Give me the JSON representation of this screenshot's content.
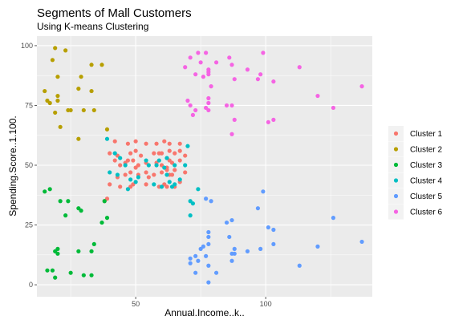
{
  "chart_data": {
    "type": "scatter",
    "title": "Segments of Mall Customers",
    "subtitle": "Using K-means Clustering",
    "xlabel": "Annual.Income..k..",
    "ylabel": "Spending.Score..1.100.",
    "xlim": [
      12,
      141
    ],
    "ylim": [
      -5,
      104
    ],
    "xticks": [
      50,
      100
    ],
    "yticks": [
      0,
      25,
      50,
      75,
      100
    ],
    "grid": true,
    "legend_position": "right",
    "series": [
      {
        "name": "Cluster 1",
        "color": "#F8766D",
        "points": [
          [
            38,
            35
          ],
          [
            39,
            36
          ],
          [
            40,
            42
          ],
          [
            40,
            55
          ],
          [
            42,
            52
          ],
          [
            42,
            60
          ],
          [
            43,
            54
          ],
          [
            43,
            45
          ],
          [
            44,
            50
          ],
          [
            44,
            41
          ],
          [
            46,
            51
          ],
          [
            46,
            46
          ],
          [
            47,
            52
          ],
          [
            47,
            59
          ],
          [
            48,
            41
          ],
          [
            48,
            47
          ],
          [
            48,
            55
          ],
          [
            49,
            52
          ],
          [
            49,
            42
          ],
          [
            50,
            60
          ],
          [
            50,
            49
          ],
          [
            50,
            56
          ],
          [
            51,
            50
          ],
          [
            51,
            46
          ],
          [
            52,
            54
          ],
          [
            54,
            59
          ],
          [
            54,
            47
          ],
          [
            54,
            51
          ],
          [
            54,
            42
          ],
          [
            55,
            45
          ],
          [
            57,
            46
          ],
          [
            57,
            55
          ],
          [
            58,
            51
          ],
          [
            58,
            59
          ],
          [
            59,
            55
          ],
          [
            59,
            41
          ],
          [
            60,
            50
          ],
          [
            60,
            47
          ],
          [
            60,
            55
          ],
          [
            61,
            42
          ],
          [
            61,
            60
          ],
          [
            62,
            49
          ],
          [
            62,
            53
          ],
          [
            62,
            41
          ],
          [
            62,
            48
          ],
          [
            63,
            46
          ],
          [
            63,
            52
          ],
          [
            63,
            56
          ],
          [
            63,
            59
          ],
          [
            64,
            51
          ],
          [
            64,
            46
          ],
          [
            65,
            55
          ],
          [
            65,
            41
          ],
          [
            65,
            48
          ],
          [
            67,
            52
          ],
          [
            67,
            56
          ],
          [
            67,
            43
          ],
          [
            67,
            59
          ],
          [
            69,
            47
          ],
          [
            69,
            54
          ]
        ]
      },
      {
        "name": "Cluster 2",
        "color": "#B79F00",
        "points": [
          [
            15,
            81
          ],
          [
            16,
            77
          ],
          [
            17,
            76
          ],
          [
            18,
            94
          ],
          [
            19,
            99
          ],
          [
            19,
            72
          ],
          [
            20,
            77
          ],
          [
            20,
            79
          ],
          [
            20,
            87
          ],
          [
            21,
            66
          ],
          [
            23,
            98
          ],
          [
            24,
            73
          ],
          [
            25,
            73
          ],
          [
            28,
            82
          ],
          [
            28,
            61
          ],
          [
            29,
            87
          ],
          [
            30,
            73
          ],
          [
            33,
            92
          ],
          [
            33,
            81
          ],
          [
            34,
            73
          ],
          [
            37,
            92
          ],
          [
            39,
            65
          ]
        ]
      },
      {
        "name": "Cluster 3",
        "color": "#00BA38",
        "points": [
          [
            15,
            39
          ],
          [
            16,
            6
          ],
          [
            17,
            40
          ],
          [
            18,
            6
          ],
          [
            19,
            3
          ],
          [
            19,
            14
          ],
          [
            20,
            13
          ],
          [
            20,
            15
          ],
          [
            21,
            35
          ],
          [
            23,
            29
          ],
          [
            24,
            35
          ],
          [
            25,
            5
          ],
          [
            28,
            14
          ],
          [
            28,
            32
          ],
          [
            29,
            31
          ],
          [
            30,
            4
          ],
          [
            33,
            4
          ],
          [
            33,
            14
          ],
          [
            34,
            17
          ],
          [
            37,
            26
          ],
          [
            38,
            35
          ],
          [
            39,
            28
          ]
        ]
      },
      {
        "name": "Cluster 4",
        "color": "#00BFC4",
        "points": [
          [
            39,
            61
          ],
          [
            40,
            47
          ],
          [
            42,
            55
          ],
          [
            43,
            46
          ],
          [
            44,
            53
          ],
          [
            46,
            50
          ],
          [
            47,
            40
          ],
          [
            48,
            44
          ],
          [
            50,
            43
          ],
          [
            51,
            45
          ],
          [
            54,
            52
          ],
          [
            55,
            50
          ],
          [
            57,
            42
          ],
          [
            58,
            50
          ],
          [
            59,
            52
          ],
          [
            60,
            41
          ],
          [
            61,
            49
          ],
          [
            62,
            53
          ],
          [
            62,
            46
          ],
          [
            63,
            43
          ],
          [
            64,
            41
          ],
          [
            65,
            42
          ],
          [
            65,
            50
          ],
          [
            67,
            44
          ],
          [
            69,
            50
          ],
          [
            70,
            58
          ],
          [
            71,
            35
          ],
          [
            71,
            29
          ],
          [
            72,
            34
          ],
          [
            74,
            40
          ]
        ]
      },
      {
        "name": "Cluster 5",
        "color": "#619CFF",
        "points": [
          [
            71,
            11
          ],
          [
            71,
            9
          ],
          [
            73,
            5
          ],
          [
            73,
            12
          ],
          [
            74,
            10
          ],
          [
            75,
            15
          ],
          [
            76,
            16
          ],
          [
            77,
            12
          ],
          [
            77,
            36
          ],
          [
            78,
            1
          ],
          [
            78,
            20
          ],
          [
            78,
            22
          ],
          [
            78,
            17
          ],
          [
            78,
            8
          ],
          [
            79,
            35
          ],
          [
            81,
            5
          ],
          [
            85,
            26
          ],
          [
            86,
            20
          ],
          [
            87,
            27
          ],
          [
            87,
            13
          ],
          [
            87,
            10
          ],
          [
            88,
            15
          ],
          [
            88,
            13
          ],
          [
            93,
            14
          ],
          [
            97,
            32
          ],
          [
            98,
            15
          ],
          [
            99,
            39
          ],
          [
            101,
            24
          ],
          [
            103,
            17
          ],
          [
            103,
            23
          ],
          [
            113,
            8
          ],
          [
            120,
            16
          ],
          [
            126,
            28
          ],
          [
            137,
            18
          ]
        ]
      },
      {
        "name": "Cluster 6",
        "color": "#F564E3",
        "points": [
          [
            69,
            91
          ],
          [
            70,
            77
          ],
          [
            71,
            95
          ],
          [
            71,
            75
          ],
          [
            72,
            71
          ],
          [
            73,
            88
          ],
          [
            73,
            73
          ],
          [
            74,
            97
          ],
          [
            75,
            93
          ],
          [
            76,
            87
          ],
          [
            77,
            97
          ],
          [
            77,
            74
          ],
          [
            78,
            90
          ],
          [
            78,
            88
          ],
          [
            78,
            76
          ],
          [
            78,
            89
          ],
          [
            78,
            78
          ],
          [
            78,
            73
          ],
          [
            79,
            83
          ],
          [
            81,
            93
          ],
          [
            85,
            75
          ],
          [
            86,
            95
          ],
          [
            87,
            75
          ],
          [
            87,
            63
          ],
          [
            87,
            92
          ],
          [
            88,
            69
          ],
          [
            88,
            86
          ],
          [
            93,
            90
          ],
          [
            97,
            86
          ],
          [
            98,
            88
          ],
          [
            99,
            97
          ],
          [
            101,
            68
          ],
          [
            103,
            85
          ],
          [
            103,
            69
          ],
          [
            113,
            91
          ],
          [
            120,
            79
          ],
          [
            126,
            74
          ],
          [
            137,
            83
          ]
        ]
      }
    ]
  }
}
